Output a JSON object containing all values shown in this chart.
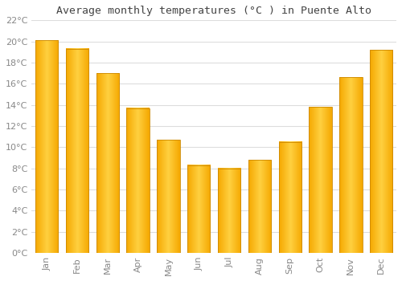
{
  "title": "Average monthly temperatures (°C ) in Puente Alto",
  "months": [
    "Jan",
    "Feb",
    "Mar",
    "Apr",
    "May",
    "Jun",
    "Jul",
    "Aug",
    "Sep",
    "Oct",
    "Nov",
    "Dec"
  ],
  "values": [
    20.1,
    19.3,
    17.0,
    13.7,
    10.7,
    8.3,
    8.0,
    8.8,
    10.5,
    13.8,
    16.6,
    19.2
  ],
  "bar_color_center": "#FFD040",
  "bar_color_edge": "#F5A800",
  "bar_outline_color": "#CC8800",
  "background_color": "#FFFFFF",
  "plot_bg_color": "#FFFFFF",
  "grid_color": "#DDDDDD",
  "tick_label_color": "#888888",
  "title_color": "#444444",
  "ylim": [
    0,
    22
  ],
  "yticks": [
    0,
    2,
    4,
    6,
    8,
    10,
    12,
    14,
    16,
    18,
    20,
    22
  ],
  "figsize": [
    5.0,
    3.5
  ],
  "dpi": 100
}
